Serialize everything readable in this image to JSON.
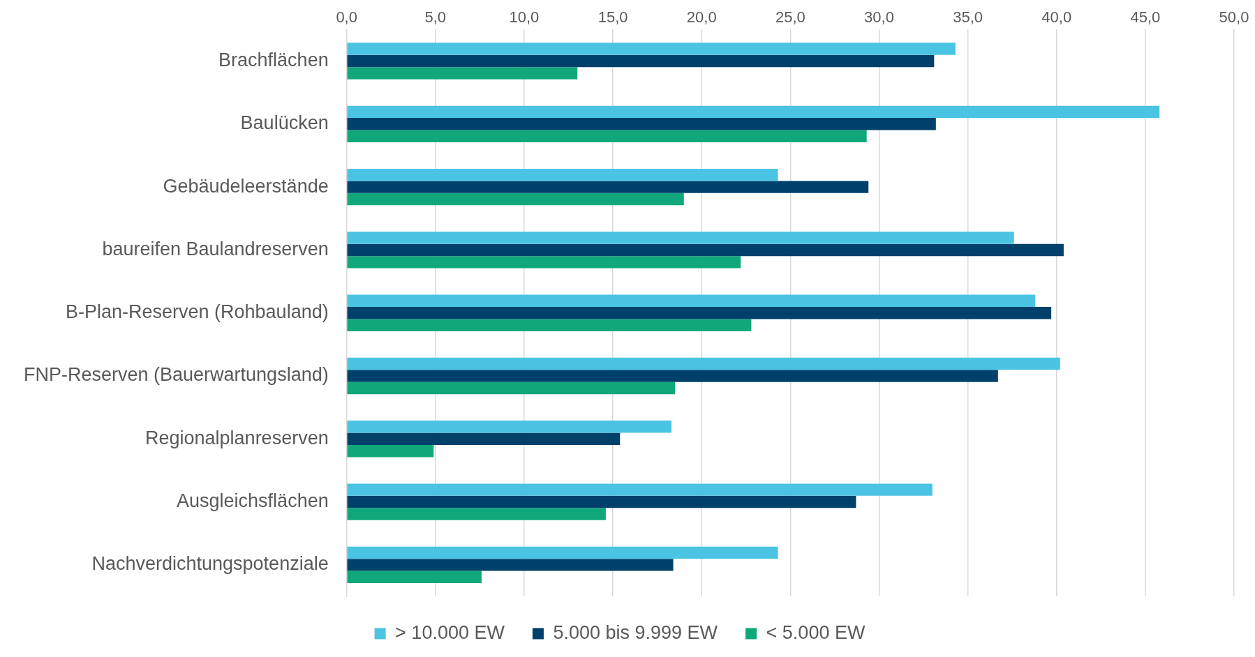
{
  "chart_data": {
    "type": "bar",
    "orientation": "horizontal",
    "categories": [
      "Brachflächen",
      "Baulücken",
      "Gebäudeleerstände",
      "baureifen Baulandreserven",
      "B-Plan-Reserven (Rohbauland)",
      "FNP-Reserven (Bauerwartungsland)",
      "Regionalplanreserven",
      "Ausgleichsflächen",
      "Nachverdichtungspotenziale"
    ],
    "series": [
      {
        "name": "> 10.000 EW",
        "color": "#4bc4e3",
        "values": [
          34.3,
          45.8,
          24.3,
          37.6,
          38.8,
          40.2,
          18.3,
          33.0,
          24.3
        ]
      },
      {
        "name": "5.000 bis 9.999 EW",
        "color": "#00416b",
        "values": [
          33.1,
          33.2,
          29.4,
          40.4,
          39.7,
          36.7,
          15.4,
          28.7,
          18.4
        ]
      },
      {
        "name": "< 5.000 EW",
        "color": "#10a87a",
        "values": [
          13.0,
          29.3,
          19.0,
          22.2,
          22.8,
          18.5,
          4.9,
          14.6,
          7.6
        ]
      }
    ],
    "xlim": [
      0,
      50
    ],
    "xticks": [
      {
        "value": 0,
        "label": "0,0"
      },
      {
        "value": 5,
        "label": "5,0"
      },
      {
        "value": 10,
        "label": "10,0"
      },
      {
        "value": 15,
        "label": "15,0"
      },
      {
        "value": 20,
        "label": "20,0"
      },
      {
        "value": 25,
        "label": "25,0"
      },
      {
        "value": 30,
        "label": "30,0"
      },
      {
        "value": 35,
        "label": "35,0"
      },
      {
        "value": 40,
        "label": "40,0"
      },
      {
        "value": 45,
        "label": "45,0"
      },
      {
        "value": 50,
        "label": "50,0"
      }
    ],
    "grid": "x",
    "legend": "bottom"
  }
}
